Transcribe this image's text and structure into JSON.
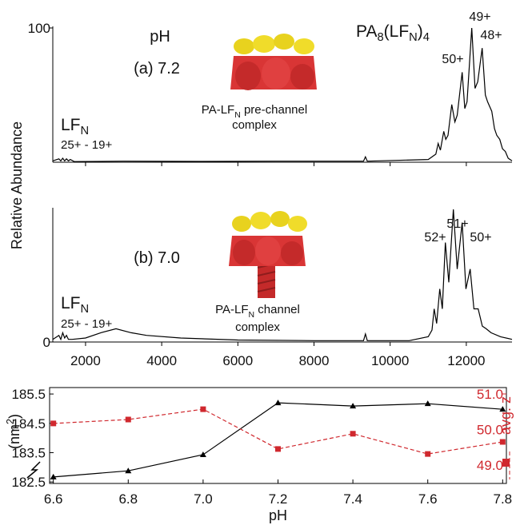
{
  "chart_data": [
    {
      "type": "line",
      "ylabel": "Relative Abundance",
      "ylim": [
        0,
        100
      ],
      "yticks": [
        100
      ],
      "xlim": [
        1140,
        13200
      ],
      "xticks": [
        2000,
        4000,
        6000,
        8000,
        10000,
        12000
      ],
      "show_xtick_labels": false,
      "color": "#000000",
      "x": [
        1140,
        1300,
        1350,
        1400,
        1450,
        1500,
        1550,
        1600,
        1700,
        3000,
        5000,
        7000,
        9300,
        9350,
        9400,
        11000,
        11200,
        11261,
        11320,
        11408,
        11460,
        11520,
        11618,
        11700,
        11760,
        11891,
        11960,
        12020,
        12143,
        12230,
        12300,
        12416,
        12500,
        12560,
        12668,
        12740,
        12800,
        12878,
        12950,
        13025,
        13100,
        13200
      ],
      "values": [
        1,
        2.5,
        1,
        3,
        1,
        2.5,
        1,
        2,
        0.5,
        0.8,
        0.6,
        0.8,
        0.8,
        4,
        0.8,
        2,
        6,
        14,
        9,
        23,
        17,
        20,
        43,
        30,
        35,
        67,
        40,
        45,
        100,
        55,
        60,
        85,
        50,
        45,
        38,
        25,
        20,
        17,
        10,
        8,
        3,
        1
      ],
      "annotations": [
        {
          "text": "pH"
        },
        {
          "text": "(a) 7.2"
        },
        {
          "parts": [
            "PA",
            "8",
            "(LF",
            "N",
            ")",
            "4"
          ],
          "script": "sub"
        },
        {
          "text": "49+"
        },
        {
          "text": "48+"
        },
        {
          "text": "50+"
        },
        {
          "parts": [
            "LF",
            "N"
          ],
          "script": "sub"
        },
        {
          "text": "25+ - 19+"
        },
        {
          "parts": [
            "PA-LF",
            "N",
            " pre-channel"
          ],
          "script": "sub"
        },
        {
          "text": "complex"
        }
      ]
    },
    {
      "type": "line",
      "ylim": [
        0,
        100
      ],
      "yticks": [
        0
      ],
      "xlim": [
        1140,
        13200
      ],
      "xticks": [
        2000,
        4000,
        6000,
        8000,
        10000,
        12000
      ],
      "show_xtick_labels": true,
      "color": "#000000",
      "x": [
        1140,
        1300,
        1350,
        1400,
        1450,
        1500,
        1550,
        1650,
        2000,
        2400,
        2800,
        3200,
        3600,
        4500,
        6000,
        8000,
        9300,
        9350,
        9400,
        10500,
        11000,
        11100,
        11156,
        11220,
        11303,
        11370,
        11450,
        11540,
        11660,
        11760,
        11891,
        11990,
        12101,
        12200,
        12311,
        12420,
        12521,
        12650,
        12900,
        13200
      ],
      "values": [
        2,
        5,
        2,
        7,
        3,
        5,
        2,
        2,
        3,
        7,
        10,
        7,
        5,
        3,
        1.5,
        1,
        1,
        6,
        1,
        1,
        4,
        9,
        25,
        14,
        40,
        25,
        75,
        45,
        100,
        55,
        90,
        40,
        55,
        25,
        25,
        12,
        10,
        7,
        4,
        2
      ],
      "annotations": [
        {
          "text": "(b) 7.0"
        },
        {
          "text": "52+"
        },
        {
          "text": "51+"
        },
        {
          "text": "50+"
        },
        {
          "parts": [
            "LF",
            "N"
          ],
          "script": "sub"
        },
        {
          "text": "25+ - 19+"
        },
        {
          "parts": [
            "PA-LF",
            "N",
            " channel"
          ],
          "script": "sub"
        },
        {
          "text": "complex"
        }
      ]
    },
    {
      "type": "dual",
      "xlabel": "pH",
      "xlim": [
        6.59,
        7.81
      ],
      "xticks": [
        6.6,
        6.8,
        {
          "value": 7,
          "label": "7.0"
        },
        7.2,
        7.4,
        7.6,
        7.8
      ],
      "ylim": [
        182.45,
        185.72
      ],
      "yticks": [
        182.5,
        183.5,
        184.5,
        185.5
      ],
      "ylabel_parts": [
        "(nm",
        "2",
        ")"
      ],
      "ylabel_script": "sup",
      "y2lim": [
        48.48,
        51.18
      ],
      "y2ticks": [
        {
          "value": 49,
          "label": "49.0"
        },
        {
          "value": 50,
          "label": "50.0"
        },
        {
          "value": 51,
          "label": "51.0"
        }
      ],
      "y2label": "avg. z",
      "y2color": "#d0282e",
      "x": [
        6.6,
        6.8,
        7.0,
        7.2,
        7.4,
        7.6,
        7.8
      ],
      "series": [
        {
          "color": "#000000",
          "marker": "triangle",
          "dashed": false,
          "values": [
            182.67,
            182.88,
            183.43,
            185.2,
            185.09,
            185.17,
            184.98
          ]
        },
        {
          "color": "#d0282e",
          "marker": "square",
          "dashed": true,
          "axis": "y2",
          "values": [
            50.17,
            50.28,
            50.57,
            49.45,
            49.88,
            49.31,
            49.65
          ]
        }
      ]
    }
  ]
}
